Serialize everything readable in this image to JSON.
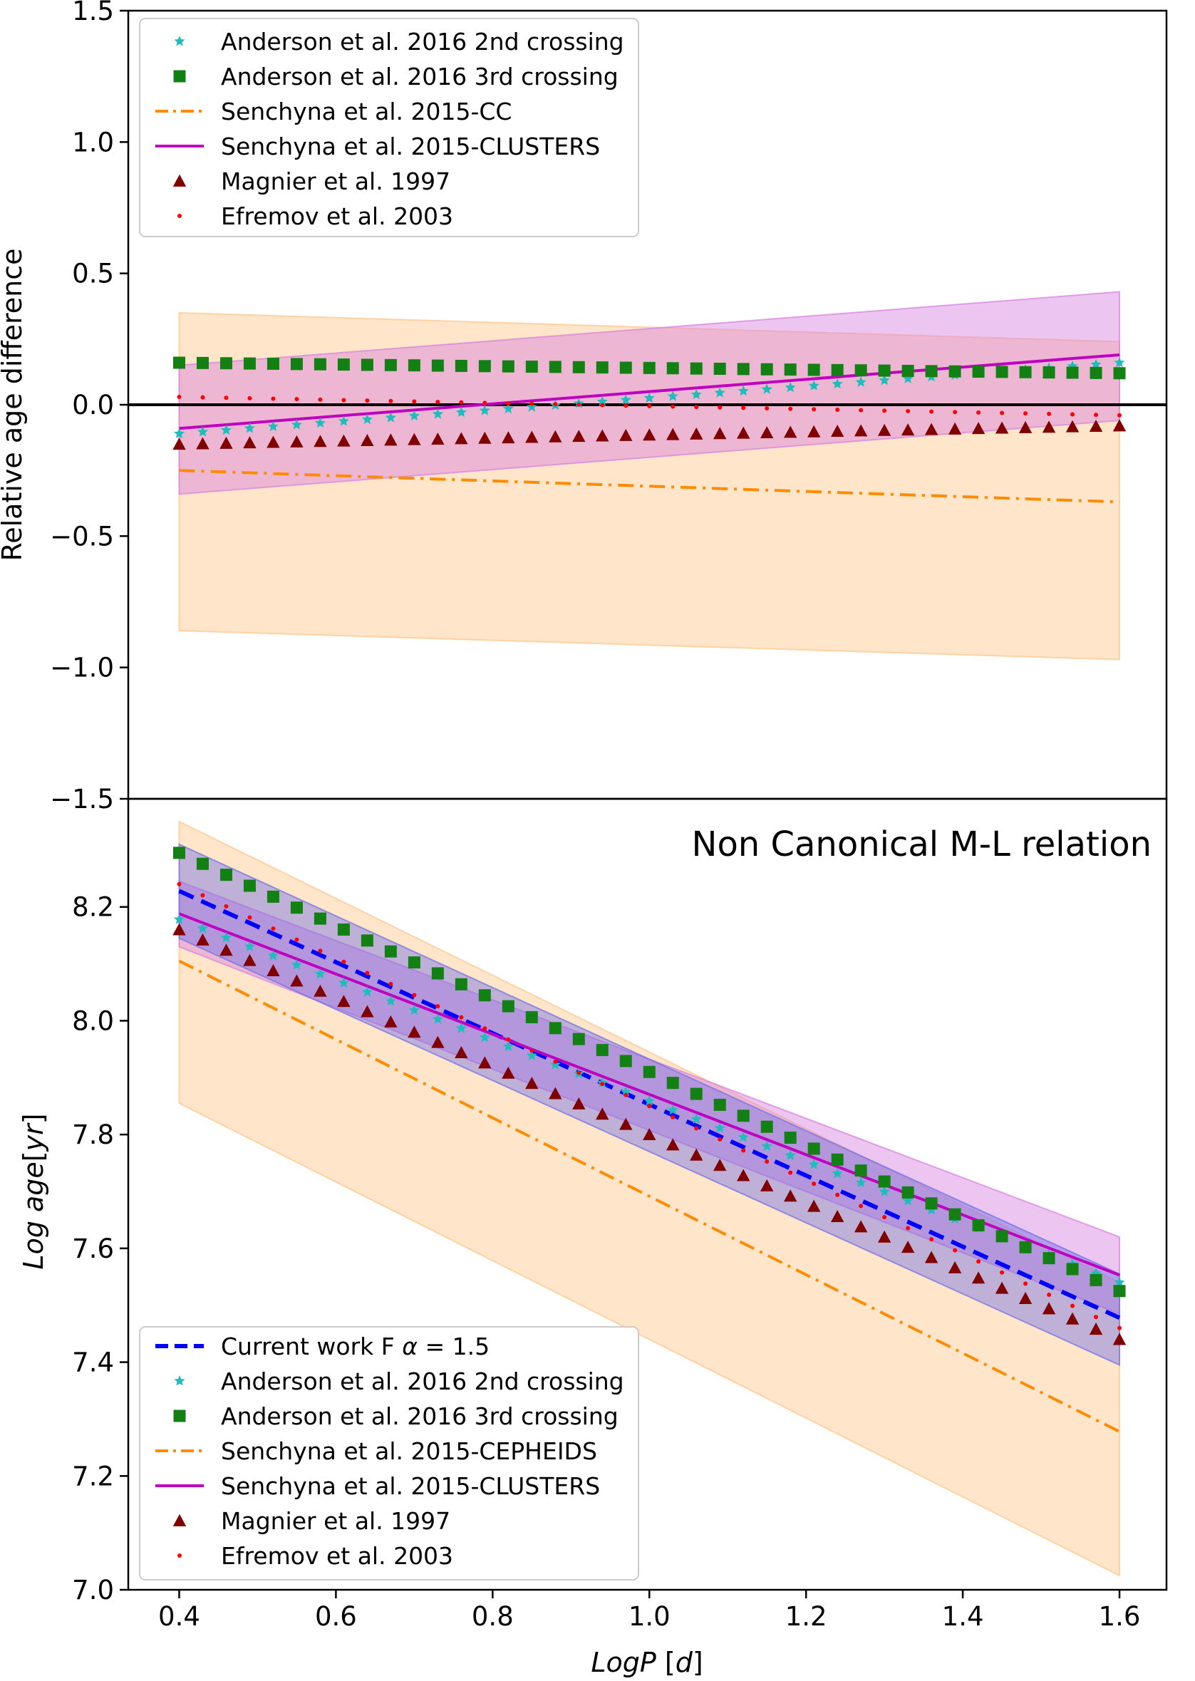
{
  "chart_data": [
    {
      "type": "line",
      "panel": "top",
      "xlim": [
        0.335,
        1.66
      ],
      "ylim": [
        -1.5,
        1.5
      ],
      "yticks": [
        "1.5",
        "1.0",
        "0.5",
        "0.0",
        "−1.0",
        "−1.5"
      ],
      "ytick_values": [
        1.5,
        1.0,
        0.5,
        0.0,
        -1.0,
        -1.5
      ],
      "yticks_extra": [
        {
          "value": -0.5,
          "label": "−0.5"
        }
      ],
      "ylabel": "Relative age difference",
      "xlabel": "",
      "grid": false,
      "hline_y": 0.0,
      "legend_position": "upper-left",
      "bands": [
        {
          "name": "orange",
          "color": "#ffc58a",
          "x": [
            0.4,
            1.6
          ],
          "upper": [
            0.35,
            0.24
          ],
          "lower": [
            -0.86,
            -0.97
          ]
        },
        {
          "name": "magenta",
          "color": "#d77fe0",
          "x": [
            0.4,
            1.6
          ],
          "upper": [
            0.15,
            0.43
          ],
          "lower": [
            -0.34,
            -0.06
          ]
        }
      ],
      "series": [
        {
          "name": "Anderson et al. 2016 2nd crossing",
          "marker": "star",
          "color": "#1fbcbc",
          "x_range": [
            0.4,
            1.6
          ],
          "n": 41,
          "y_start": -0.11,
          "y_end": 0.16
        },
        {
          "name": "Anderson et al. 2016 3rd crossing",
          "marker": "square",
          "color": "#138013",
          "x_range": [
            0.4,
            1.6
          ],
          "n": 41,
          "y_start": 0.16,
          "y_end": 0.12
        },
        {
          "name": "Senchyna et al. 2015-CC",
          "style": "dashdot",
          "color": "#ff8c00",
          "x": [
            0.4,
            1.6
          ],
          "y": [
            -0.25,
            -0.37
          ]
        },
        {
          "name": "Senchyna et al. 2015-CLUSTERS",
          "style": "solid",
          "color": "#bf00bf",
          "x": [
            0.4,
            1.6
          ],
          "y": [
            -0.09,
            0.19
          ]
        },
        {
          "name": "Magnier et al. 1997",
          "marker": "triangle",
          "color": "#800000",
          "x_range": [
            0.4,
            1.6
          ],
          "n": 41,
          "y_start": -0.15,
          "y_end": -0.08
        },
        {
          "name": "Efremov et al. 2003",
          "marker": "dot",
          "color": "#ff0000",
          "x_range": [
            0.4,
            1.6
          ],
          "n": 41,
          "y_start": 0.03,
          "y_end": -0.04
        }
      ]
    },
    {
      "type": "line",
      "panel": "bottom",
      "xlim": [
        0.335,
        1.66
      ],
      "ylim": [
        7.0,
        8.39
      ],
      "xticks": [
        "0.4",
        "0.6",
        "0.8",
        "1.0",
        "1.2",
        "1.4",
        "1.6"
      ],
      "xtick_values": [
        0.4,
        0.6,
        0.8,
        1.0,
        1.2,
        1.4,
        1.6
      ],
      "yticks": [
        "7.0",
        "7.2",
        "7.4",
        "7.6",
        "7.8",
        "8.0",
        "8.2"
      ],
      "ytick_values": [
        7.0,
        7.2,
        7.4,
        7.6,
        7.8,
        8.0,
        8.2
      ],
      "xlabel_italic": "LogP",
      "xlabel_rest": " [",
      "xlabel_unit": "d",
      "xlabel_close": "]",
      "ylabel_italic_1": "Log age",
      "ylabel_open": "[",
      "ylabel_unit": "yr",
      "ylabel_close": "]",
      "annotation": "Non Canonical M-L relation",
      "grid": false,
      "legend_position": "lower-left",
      "bands": [
        {
          "name": "orange",
          "color": "#ffc58a",
          "x": [
            0.4,
            1.6
          ],
          "upper": [
            8.35,
            7.54
          ],
          "lower": [
            7.855,
            7.025
          ]
        },
        {
          "name": "magenta",
          "color": "#d77fe0",
          "x": [
            0.4,
            1.6
          ],
          "upper": [
            8.245,
            7.62
          ],
          "lower": [
            8.13,
            7.485
          ]
        },
        {
          "name": "blue",
          "color": "#6f6fe6",
          "x": [
            0.4,
            1.6
          ],
          "upper": [
            8.31,
            7.555
          ],
          "lower": [
            8.145,
            7.395
          ]
        }
      ],
      "series": [
        {
          "name": "Current work F α = 1.5",
          "style": "dashed",
          "color": "#0000ff",
          "x": [
            0.4,
            1.6
          ],
          "y": [
            8.228,
            7.478
          ]
        },
        {
          "name": "Anderson et al. 2016 2nd crossing",
          "marker": "star",
          "color": "#1fbcbc",
          "x_range": [
            0.4,
            1.6
          ],
          "n": 41,
          "y_start": 8.178,
          "y_end": 7.54
        },
        {
          "name": "Anderson et al. 2016 3rd crossing",
          "marker": "square",
          "color": "#138013",
          "x_range": [
            0.4,
            1.6
          ],
          "n": 41,
          "y_start": 8.295,
          "y_end": 7.525
        },
        {
          "name": "Senchyna et al. 2015-CEPHEIDS",
          "style": "dashdot",
          "color": "#ff8c00",
          "x": [
            0.4,
            1.6
          ],
          "y": [
            8.105,
            7.278
          ]
        },
        {
          "name": "Senchyna et al. 2015-CLUSTERS",
          "style": "solid",
          "color": "#bf00bf",
          "x": [
            0.4,
            1.6
          ],
          "y": [
            8.188,
            7.553
          ]
        },
        {
          "name": "Magnier et al. 1997",
          "marker": "triangle",
          "color": "#800000",
          "x_range": [
            0.4,
            1.6
          ],
          "n": 41,
          "y_start": 8.16,
          "y_end": 7.44
        },
        {
          "name": "Efremov et al. 2003",
          "marker": "dot",
          "color": "#ff0000",
          "x_range": [
            0.4,
            1.6
          ],
          "n": 41,
          "y_start": 8.24,
          "y_end": 7.46
        }
      ]
    }
  ],
  "legend_label_alpha_prefix": "Current work F ",
  "legend_label_alpha_symbol": "α",
  "legend_label_alpha_suffix": " = 1.5"
}
